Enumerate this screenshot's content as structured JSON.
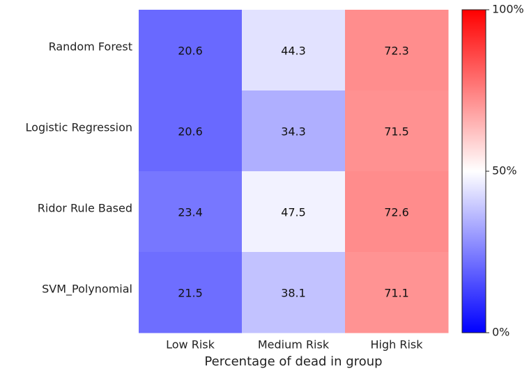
{
  "chart_data": {
    "type": "heatmap",
    "xlabel": "Percentage of dead in group",
    "categories": [
      "Low Risk",
      "Medium Risk",
      "High Risk"
    ],
    "rows": [
      "Random Forest",
      "Logistic Regression",
      "Ridor Rule Based",
      "SVM_Polynomial"
    ],
    "values": [
      [
        20.6,
        44.3,
        72.3
      ],
      [
        20.6,
        34.3,
        71.5
      ],
      [
        23.4,
        47.5,
        72.6
      ],
      [
        21.5,
        38.1,
        71.1
      ]
    ],
    "clim": [
      0,
      100
    ],
    "cticks": [
      {
        "value": 0,
        "label": "0%"
      },
      {
        "value": 50,
        "label": "50%"
      },
      {
        "value": 100,
        "label": "100%"
      }
    ],
    "colormap": [
      "#0000ff",
      "#ffffff",
      "#ff0000"
    ]
  }
}
